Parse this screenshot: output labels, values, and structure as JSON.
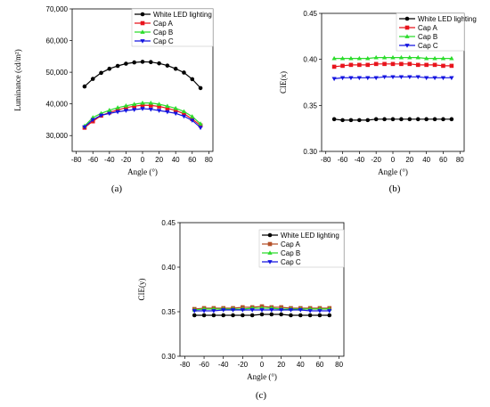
{
  "chart_data": [
    {
      "type": "line",
      "caption": "(a)",
      "xlabel": "Angle (°)",
      "ylabel": "Luminance (cd/m²)",
      "xlim": [
        -85,
        85
      ],
      "ylim": [
        25000,
        70000
      ],
      "xticks": [
        -80,
        -60,
        -40,
        -20,
        0,
        20,
        40,
        60,
        80
      ],
      "xtick_labels": [
        "-80",
        "-60",
        "-40",
        "-20",
        "0",
        "20",
        "40",
        "60",
        "80"
      ],
      "yticks": [
        30000,
        40000,
        50000,
        60000,
        70000
      ],
      "ytick_labels": [
        "30,000",
        "40,000",
        "50,000",
        "60,000",
        "70,000"
      ],
      "legend_position": "top-right",
      "x": [
        -70,
        -60,
        -50,
        -40,
        -30,
        -20,
        -10,
        0,
        10,
        20,
        30,
        40,
        50,
        60,
        70
      ],
      "series": [
        {
          "name": "White LED lighting",
          "color": "#000000",
          "marker": "circle",
          "values": [
            45500,
            47900,
            49800,
            51100,
            52000,
            52700,
            53100,
            53300,
            53200,
            52800,
            52100,
            51100,
            49900,
            47800,
            45000
          ]
        },
        {
          "name": "Cap A",
          "color": "#e8141c",
          "marker": "square",
          "values": [
            32500,
            34500,
            36300,
            37300,
            38100,
            38800,
            39300,
            39600,
            39500,
            39200,
            38600,
            37900,
            36900,
            35200,
            33200
          ]
        },
        {
          "name": "Cap B",
          "color": "#2cdc2c",
          "marker": "triangle-up",
          "values": [
            33000,
            35700,
            37000,
            38000,
            38800,
            39400,
            39900,
            40300,
            40300,
            39900,
            39300,
            38600,
            37600,
            36000,
            33700
          ]
        },
        {
          "name": "Cap C",
          "color": "#1414e0",
          "marker": "triangle-down",
          "values": [
            32700,
            35000,
            36400,
            37000,
            37500,
            37900,
            38200,
            38500,
            38300,
            37900,
            37500,
            37000,
            36100,
            34800,
            32500
          ]
        }
      ]
    },
    {
      "type": "line",
      "caption": "(b)",
      "xlabel": "Angle (°)",
      "ylabel": "CIE(x)",
      "xlim": [
        -85,
        85
      ],
      "ylim": [
        0.3,
        0.45
      ],
      "xticks": [
        -80,
        -60,
        -40,
        -20,
        0,
        20,
        40,
        60,
        80
      ],
      "xtick_labels": [
        "-80",
        "-60",
        "-40",
        "-20",
        "0",
        "20",
        "40",
        "60",
        "80"
      ],
      "yticks": [
        0.3,
        0.35,
        0.4,
        0.45
      ],
      "ytick_labels": [
        "0.30",
        "0.35",
        "0.40",
        "0.45"
      ],
      "legend_position": "top-right",
      "x": [
        -70,
        -60,
        -50,
        -40,
        -30,
        -20,
        -10,
        0,
        10,
        20,
        30,
        40,
        50,
        60,
        70
      ],
      "series": [
        {
          "name": "White LED lighting",
          "color": "#000000",
          "marker": "circle",
          "values": [
            0.335,
            0.334,
            0.334,
            0.334,
            0.334,
            0.335,
            0.335,
            0.335,
            0.335,
            0.335,
            0.335,
            0.335,
            0.335,
            0.335,
            0.335
          ]
        },
        {
          "name": "Cap A",
          "color": "#e8141c",
          "marker": "square",
          "values": [
            0.392,
            0.393,
            0.394,
            0.394,
            0.394,
            0.395,
            0.395,
            0.395,
            0.395,
            0.395,
            0.394,
            0.394,
            0.394,
            0.393,
            0.393
          ]
        },
        {
          "name": "Cap B",
          "color": "#2cdc2c",
          "marker": "triangle-up",
          "values": [
            0.401,
            0.401,
            0.401,
            0.401,
            0.401,
            0.402,
            0.402,
            0.402,
            0.402,
            0.402,
            0.402,
            0.401,
            0.401,
            0.401,
            0.401
          ]
        },
        {
          "name": "Cap C",
          "color": "#1414e0",
          "marker": "triangle-down",
          "values": [
            0.379,
            0.38,
            0.38,
            0.38,
            0.38,
            0.38,
            0.381,
            0.381,
            0.381,
            0.381,
            0.381,
            0.38,
            0.38,
            0.38,
            0.38
          ]
        }
      ]
    },
    {
      "type": "line",
      "caption": "(c)",
      "xlabel": "Angle (°)",
      "ylabel": "CIE(y)",
      "xlim": [
        -85,
        85
      ],
      "ylim": [
        0.3,
        0.45
      ],
      "xticks": [
        -80,
        -60,
        -40,
        -20,
        0,
        20,
        40,
        60,
        80
      ],
      "xtick_labels": [
        "-80",
        "-60",
        "-40",
        "-20",
        "0",
        "20",
        "40",
        "60",
        "80"
      ],
      "yticks": [
        0.3,
        0.35,
        0.4,
        0.45
      ],
      "ytick_labels": [
        "0.30",
        "0.35",
        "0.40",
        "0.45"
      ],
      "legend_position": "top-right",
      "x": [
        -70,
        -60,
        -50,
        -40,
        -30,
        -20,
        -10,
        0,
        10,
        20,
        30,
        40,
        50,
        60,
        70
      ],
      "series": [
        {
          "name": "White LED lighting",
          "color": "#000000",
          "marker": "circle",
          "values": [
            0.346,
            0.346,
            0.346,
            0.346,
            0.346,
            0.346,
            0.346,
            0.347,
            0.347,
            0.347,
            0.346,
            0.346,
            0.346,
            0.346,
            0.346
          ]
        },
        {
          "name": "Cap A",
          "color": "#b5522a",
          "marker": "square",
          "values": [
            0.353,
            0.354,
            0.354,
            0.354,
            0.354,
            0.355,
            0.355,
            0.356,
            0.355,
            0.355,
            0.354,
            0.354,
            0.354,
            0.354,
            0.354
          ]
        },
        {
          "name": "Cap B",
          "color": "#2cdc2c",
          "marker": "triangle-up",
          "values": [
            0.352,
            0.353,
            0.353,
            0.353,
            0.353,
            0.353,
            0.354,
            0.354,
            0.354,
            0.353,
            0.353,
            0.353,
            0.353,
            0.353,
            0.353
          ]
        },
        {
          "name": "Cap C",
          "color": "#1414e0",
          "marker": "triangle-down",
          "values": [
            0.351,
            0.351,
            0.351,
            0.352,
            0.352,
            0.352,
            0.352,
            0.352,
            0.352,
            0.352,
            0.352,
            0.352,
            0.351,
            0.351,
            0.351
          ]
        }
      ]
    }
  ]
}
